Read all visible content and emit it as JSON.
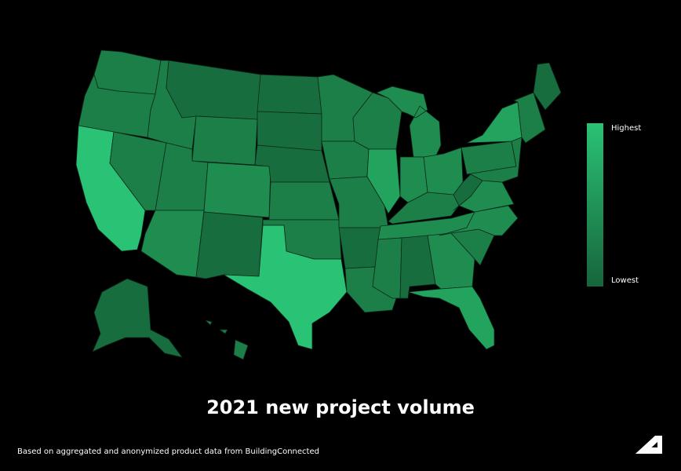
{
  "title": "2021 new project volume",
  "footnote": "Based on aggregated and anonymized product data from BuildingConnected",
  "legend": {
    "high_label": "Highest",
    "low_label": "Lowest",
    "high_color": "#2ac274",
    "low_color": "#17653c"
  },
  "colors": {
    "background": "#000000",
    "border": "#0b2a1a",
    "highest": "#2ac274",
    "high": "#23a45e",
    "mid_high": "#1f8d50",
    "mid": "#1c7f48",
    "low": "#186d3f"
  },
  "brand_logo": "autodesk-logo",
  "map_states": [
    {
      "name": "Washington",
      "level": "mid"
    },
    {
      "name": "Oregon",
      "level": "mid"
    },
    {
      "name": "California",
      "level": "highest"
    },
    {
      "name": "Nevada",
      "level": "mid"
    },
    {
      "name": "Idaho",
      "level": "mid"
    },
    {
      "name": "Montana",
      "level": "low"
    },
    {
      "name": "Wyoming",
      "level": "mid"
    },
    {
      "name": "Utah",
      "level": "mid"
    },
    {
      "name": "Colorado",
      "level": "mid_high"
    },
    {
      "name": "Arizona",
      "level": "mid_high"
    },
    {
      "name": "New Mexico",
      "level": "low"
    },
    {
      "name": "North Dakota",
      "level": "low"
    },
    {
      "name": "South Dakota",
      "level": "low"
    },
    {
      "name": "Nebraska",
      "level": "low"
    },
    {
      "name": "Kansas",
      "level": "mid"
    },
    {
      "name": "Oklahoma",
      "level": "mid"
    },
    {
      "name": "Texas",
      "level": "highest"
    },
    {
      "name": "Minnesota",
      "level": "mid"
    },
    {
      "name": "Iowa",
      "level": "mid"
    },
    {
      "name": "Missouri",
      "level": "mid"
    },
    {
      "name": "Arkansas",
      "level": "low"
    },
    {
      "name": "Louisiana",
      "level": "mid"
    },
    {
      "name": "Wisconsin",
      "level": "mid"
    },
    {
      "name": "Illinois",
      "level": "high"
    },
    {
      "name": "Michigan",
      "level": "mid_high"
    },
    {
      "name": "Indiana",
      "level": "mid_high"
    },
    {
      "name": "Ohio",
      "level": "mid_high"
    },
    {
      "name": "Kentucky",
      "level": "mid"
    },
    {
      "name": "Tennessee",
      "level": "mid_high"
    },
    {
      "name": "Mississippi",
      "level": "mid"
    },
    {
      "name": "Alabama",
      "level": "low"
    },
    {
      "name": "Georgia",
      "level": "mid_high"
    },
    {
      "name": "Florida",
      "level": "high"
    },
    {
      "name": "South Carolina",
      "level": "mid"
    },
    {
      "name": "North Carolina",
      "level": "mid_high"
    },
    {
      "name": "Virginia",
      "level": "mid_high"
    },
    {
      "name": "West Virginia",
      "level": "low"
    },
    {
      "name": "Pennsylvania",
      "level": "mid"
    },
    {
      "name": "New York",
      "level": "high"
    },
    {
      "name": "New England",
      "level": "mid"
    },
    {
      "name": "Maine",
      "level": "low"
    },
    {
      "name": "Alaska",
      "level": "low"
    },
    {
      "name": "Hawaii",
      "level": "mid"
    }
  ]
}
